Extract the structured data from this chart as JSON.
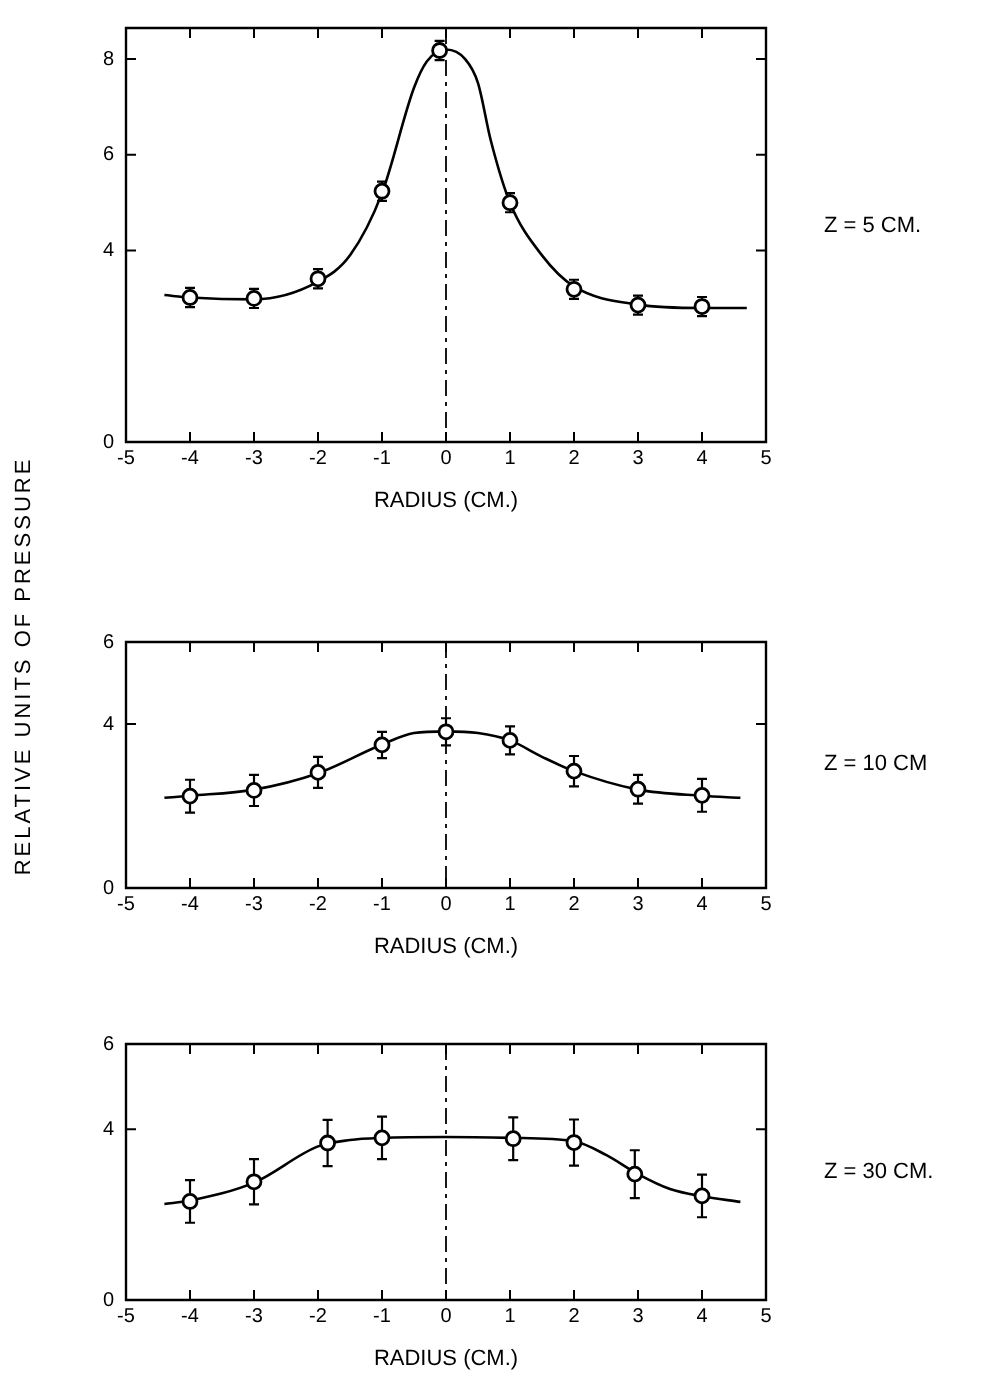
{
  "chart_data": [
    {
      "type": "scatter",
      "xlabel": "RADIUS (CM.)",
      "annotations": [
        "Z = 5 CM."
      ],
      "xlim": [
        -5,
        5
      ],
      "xticks": [
        -5,
        -4,
        -3,
        -2,
        -1,
        0,
        1,
        2,
        3,
        4,
        5
      ],
      "ylim": [
        0,
        8.65
      ],
      "yticks": [
        0,
        4,
        6,
        8
      ],
      "grid": false,
      "legend": false,
      "ref_lines": [
        {
          "axis": "x",
          "value": 0,
          "line_style": "dashed"
        }
      ],
      "series": [
        {
          "type": "line",
          "color": "#000000",
          "marker": "none",
          "x": [
            -4.4,
            -4,
            -3,
            -2,
            -1.5,
            -1,
            -0.5,
            -0.3,
            0,
            0.3,
            0.5,
            0.7,
            1,
            1.5,
            2,
            3,
            4,
            4.7
          ],
          "values": [
            3.07,
            3.02,
            2.98,
            3.35,
            3.9,
            5.2,
            7.4,
            7.95,
            8.2,
            8.0,
            7.5,
            6.3,
            5.0,
            3.9,
            3.25,
            2.87,
            2.8,
            2.8
          ]
        },
        {
          "color": "#000000",
          "marker": "circle",
          "x": [
            -4,
            -3,
            -2,
            -1,
            -0.1,
            1,
            2,
            3,
            4
          ],
          "values": [
            3.02,
            3.0,
            3.41,
            5.24,
            8.18,
            5.0,
            3.19,
            2.86,
            2.83
          ],
          "errors": [
            0.2,
            0.2,
            0.2,
            0.2,
            0.2,
            0.2,
            0.2,
            0.2,
            0.2
          ]
        }
      ]
    },
    {
      "type": "scatter",
      "xlabel": "RADIUS (CM.)",
      "ylabel": "RELATIVE UNITS OF PRESSURE",
      "annotations": [
        "Z = 10 CM"
      ],
      "xlim": [
        -5,
        5
      ],
      "xticks": [
        -5,
        -4,
        -3,
        -2,
        -1,
        0,
        1,
        2,
        3,
        4,
        5
      ],
      "ylim": [
        0,
        6
      ],
      "yticks": [
        0,
        4,
        6
      ],
      "grid": false,
      "legend": false,
      "ref_lines": [
        {
          "axis": "x",
          "value": 0,
          "line_style": "dashed"
        }
      ],
      "series": [
        {
          "type": "line",
          "color": "#000000",
          "marker": "none",
          "x": [
            -4.4,
            -4,
            -3,
            -2,
            -1,
            -0.5,
            0,
            0.5,
            1,
            1.5,
            2,
            3,
            4,
            4.6
          ],
          "values": [
            2.2,
            2.25,
            2.4,
            2.8,
            3.5,
            3.78,
            3.82,
            3.78,
            3.6,
            3.2,
            2.85,
            2.4,
            2.25,
            2.2
          ]
        },
        {
          "color": "#000000",
          "marker": "circle",
          "x": [
            -4,
            -3,
            -2,
            -1,
            0,
            1,
            2,
            3,
            4
          ],
          "values": [
            2.24,
            2.38,
            2.82,
            3.49,
            3.81,
            3.6,
            2.85,
            2.41,
            2.26
          ],
          "errors": [
            0.4,
            0.38,
            0.38,
            0.32,
            0.33,
            0.34,
            0.37,
            0.35,
            0.4
          ]
        }
      ]
    },
    {
      "type": "scatter",
      "xlabel": "RADIUS (CM.)",
      "annotations": [
        "Z = 30 CM."
      ],
      "xlim": [
        -5,
        5
      ],
      "xticks": [
        -5,
        -4,
        -3,
        -2,
        -1,
        0,
        1,
        2,
        3,
        4,
        5
      ],
      "ylim": [
        0,
        6
      ],
      "yticks": [
        0,
        4,
        6
      ],
      "grid": false,
      "legend": false,
      "ref_lines": [
        {
          "axis": "x",
          "value": 0,
          "line_style": "dashed"
        }
      ],
      "series": [
        {
          "type": "line",
          "color": "#000000",
          "marker": "none",
          "x": [
            -4.4,
            -4,
            -3,
            -2,
            -1.5,
            -1,
            0,
            1,
            2,
            2.5,
            3,
            3.5,
            4,
            4.6
          ],
          "values": [
            2.25,
            2.33,
            2.75,
            3.6,
            3.75,
            3.8,
            3.82,
            3.8,
            3.72,
            3.4,
            2.95,
            2.6,
            2.43,
            2.3
          ]
        },
        {
          "color": "#000000",
          "marker": "circle",
          "x": [
            -4,
            -3,
            -1.85,
            -1,
            1.05,
            2,
            2.95,
            4
          ],
          "values": [
            2.31,
            2.77,
            3.68,
            3.8,
            3.78,
            3.69,
            2.95,
            2.44
          ],
          "errors": [
            0.5,
            0.53,
            0.54,
            0.5,
            0.5,
            0.54,
            0.56,
            0.5
          ]
        }
      ]
    }
  ]
}
